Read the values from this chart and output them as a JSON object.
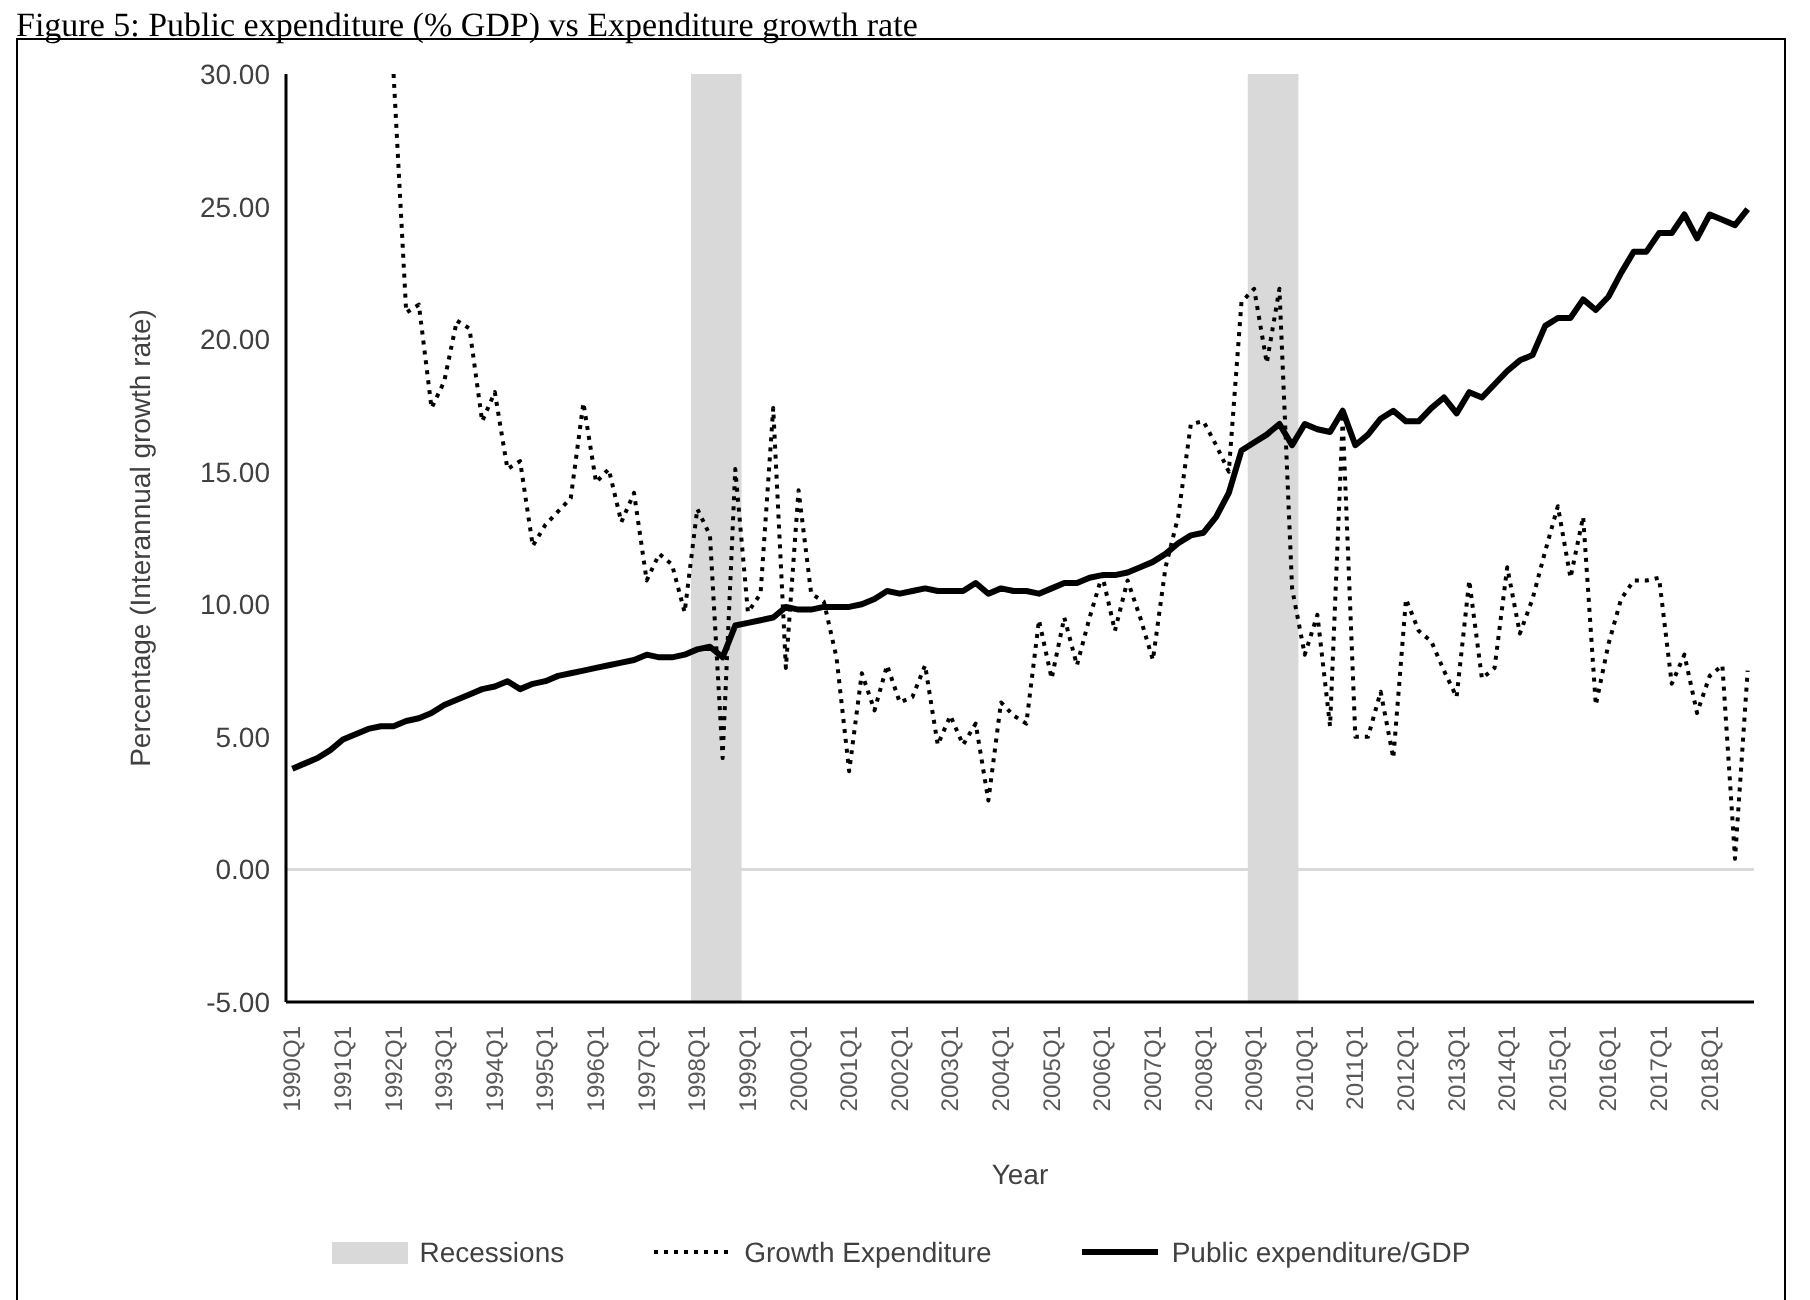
{
  "chart_data": {
    "type": "line",
    "title": "Figure 5: Public expenditure (% GDP) vs Expenditure growth rate",
    "xlabel": "Year",
    "ylabel": "Percentage (Interannual growth rate)",
    "categories": [
      "1990Q1",
      null,
      null,
      null,
      "1991Q1",
      null,
      null,
      null,
      "1992Q1",
      null,
      null,
      null,
      "1993Q1",
      null,
      null,
      null,
      "1994Q1",
      null,
      null,
      null,
      "1995Q1",
      null,
      null,
      null,
      "1996Q1",
      null,
      null,
      null,
      "1997Q1",
      null,
      null,
      null,
      "1998Q1",
      null,
      null,
      null,
      "1999Q1",
      null,
      null,
      null,
      "2000Q1",
      null,
      null,
      null,
      "2001Q1",
      null,
      null,
      null,
      "2002Q1",
      null,
      null,
      null,
      "2003Q1",
      null,
      null,
      null,
      "2004Q1",
      null,
      null,
      null,
      "2005Q1",
      null,
      null,
      null,
      "2006Q1",
      null,
      null,
      null,
      "2007Q1",
      null,
      null,
      null,
      "2008Q1",
      null,
      null,
      null,
      "2009Q1",
      null,
      null,
      null,
      "2010Q1",
      null,
      null,
      null,
      "2011Q1",
      null,
      null,
      null,
      "2012Q1",
      null,
      null,
      null,
      "2013Q1",
      null,
      null,
      null,
      "2014Q1",
      null,
      null,
      null,
      "2015Q1",
      null,
      null,
      null,
      "2016Q1",
      null,
      null,
      null,
      "2017Q1",
      null,
      null,
      null,
      "2018Q1",
      null,
      null,
      null
    ],
    "series": [
      {
        "name": "Growth Expenditure",
        "color": "#000000",
        "line_style": "dotted",
        "values": [
          null,
          null,
          null,
          null,
          null,
          null,
          null,
          null,
          30,
          21.0,
          21.3,
          17.4,
          18.4,
          20.7,
          20.4,
          16.9,
          18.0,
          15.1,
          15.4,
          12.2,
          13.0,
          13.5,
          14.0,
          17.6,
          14.6,
          15.1,
          13.1,
          14.2,
          10.9,
          11.9,
          11.5,
          9.7,
          13.6,
          12.6,
          4.2,
          15.1,
          9.7,
          10.4,
          17.4,
          7.6,
          14.3,
          10.4,
          10.1,
          8.0,
          3.7,
          7.4,
          6.0,
          7.7,
          6.3,
          6.5,
          7.7,
          4.7,
          5.8,
          4.7,
          5.5,
          2.6,
          6.3,
          5.8,
          5.5,
          9.4,
          7.2,
          9.5,
          7.7,
          9.5,
          11.1,
          9.0,
          10.9,
          9.5,
          7.9,
          11.4,
          13.3,
          16.8,
          16.9,
          16.0,
          15.0,
          21.4,
          21.9,
          19.1,
          21.9,
          10.6,
          8.1,
          9.6,
          5.4,
          17.0,
          5.0,
          5.0,
          6.7,
          4.2,
          10.2,
          9.0,
          8.6,
          7.5,
          6.5,
          10.9,
          7.2,
          7.6,
          11.4,
          8.9,
          10.2,
          12.0,
          13.7,
          11.0,
          13.3,
          6.2,
          8.5,
          10.2,
          10.9,
          10.9,
          11.0,
          7.0,
          8.1,
          5.9,
          7.3,
          7.7,
          0.4,
          7.5
        ]
      },
      {
        "name": "Public expenditure/GDP",
        "color": "#000000",
        "line_style": "solid",
        "values": [
          3.8,
          4.0,
          4.2,
          4.5,
          4.9,
          5.1,
          5.3,
          5.4,
          5.4,
          5.6,
          5.7,
          5.9,
          6.2,
          6.4,
          6.6,
          6.8,
          6.9,
          7.1,
          6.8,
          7.0,
          7.1,
          7.3,
          7.4,
          7.5,
          7.6,
          7.7,
          7.8,
          7.9,
          8.1,
          8.0,
          8.0,
          8.1,
          8.3,
          8.4,
          8.0,
          9.2,
          9.3,
          9.4,
          9.5,
          9.9,
          9.8,
          9.8,
          9.9,
          9.9,
          9.9,
          10.0,
          10.2,
          10.5,
          10.4,
          10.5,
          10.6,
          10.5,
          10.5,
          10.5,
          10.8,
          10.4,
          10.6,
          10.5,
          10.5,
          10.4,
          10.6,
          10.8,
          10.8,
          11.0,
          11.1,
          11.1,
          11.2,
          11.4,
          11.6,
          11.9,
          12.3,
          12.6,
          12.7,
          13.3,
          14.2,
          15.8,
          16.1,
          16.4,
          16.8,
          16.0,
          16.8,
          16.6,
          16.5,
          17.3,
          16.0,
          16.4,
          17.0,
          17.3,
          16.9,
          16.9,
          17.4,
          17.8,
          17.2,
          18.0,
          17.8,
          18.3,
          18.8,
          19.2,
          19.4,
          20.5,
          20.8,
          20.8,
          21.5,
          21.1,
          21.6,
          22.5,
          23.3,
          23.3,
          24.0,
          24.0,
          24.7,
          23.8,
          24.7,
          24.5,
          24.3,
          24.9
        ]
      }
    ],
    "bands": [
      {
        "axis": "x",
        "from": "1998Q1",
        "to": "1999Q1",
        "label": "Recessions",
        "color": "#d9d9d9"
      },
      {
        "axis": "x",
        "from": "2009Q1",
        "to": "2010Q1",
        "color": "#d9d9d9"
      }
    ],
    "ref_lines": [
      {
        "axis": "y",
        "value": 0,
        "color": "#d9d9d9"
      }
    ],
    "ylim": [
      -5,
      30
    ],
    "yticks": [
      {
        "value": -5,
        "label": "-5.00"
      },
      {
        "value": 0,
        "label": "0.00"
      },
      {
        "value": 5,
        "label": "5.00"
      },
      {
        "value": 10,
        "label": "10.00"
      },
      {
        "value": 15,
        "label": "15.00"
      },
      {
        "value": 20,
        "label": "20.00"
      },
      {
        "value": 25,
        "label": "25.00"
      },
      {
        "value": 30,
        "label": "30.00"
      }
    ],
    "grid": false,
    "legend": "bottom",
    "marker": "none"
  }
}
